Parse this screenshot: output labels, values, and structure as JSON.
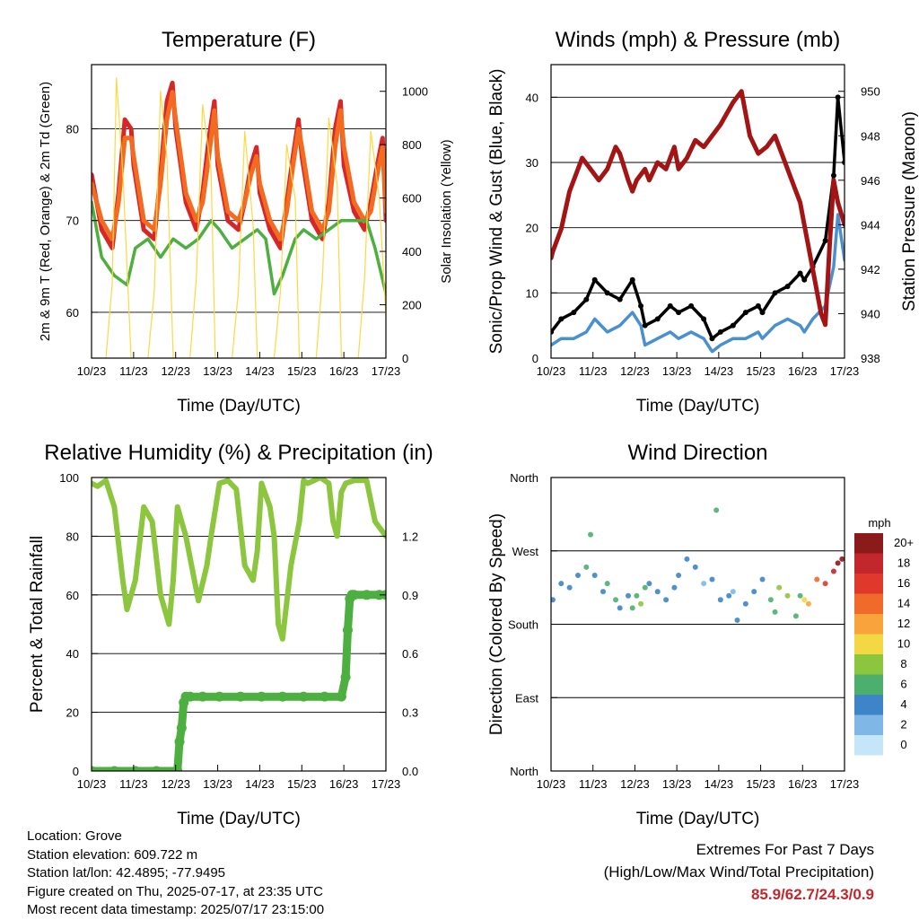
{
  "chart_data": [
    {
      "type": "line",
      "title": "Temperature (F)",
      "xlabel": "Time (Day/UTC)",
      "ylabel": "2m & 9m T (Red, Orange) & 2m Td (Green)",
      "y2label": "Solar Insolation (Yellow)",
      "x_ticks": [
        "10/23",
        "11/23",
        "12/23",
        "13/23",
        "14/23",
        "15/23",
        "16/23",
        "17/23"
      ],
      "xlim": [
        10.958,
        17.958
      ],
      "ylim": [
        55,
        87
      ],
      "y_ticks": [
        60,
        70,
        80
      ],
      "y2lim": [
        0,
        1100
      ],
      "y2_ticks": [
        0,
        200,
        400,
        600,
        800,
        1000
      ],
      "grid": true,
      "series": [
        {
          "name": "2m T",
          "color": "#d62728",
          "x": [
            10.96,
            11.2,
            11.45,
            11.6,
            11.75,
            11.9,
            11.96,
            12.2,
            12.45,
            12.6,
            12.75,
            12.88,
            12.96,
            13.2,
            13.45,
            13.6,
            13.75,
            13.88,
            13.96,
            14.2,
            14.45,
            14.6,
            14.75,
            14.88,
            14.96,
            15.2,
            15.45,
            15.6,
            15.75,
            15.88,
            15.96,
            16.2,
            16.45,
            16.6,
            16.75,
            16.88,
            16.96,
            17.2,
            17.45,
            17.6,
            17.75,
            17.88,
            17.96
          ],
          "values": [
            75,
            69,
            67,
            73,
            81,
            80,
            76,
            69,
            68,
            75,
            83,
            85,
            80,
            72,
            69,
            73,
            79,
            83,
            76,
            70,
            69,
            72,
            76,
            78,
            73,
            69,
            67,
            72,
            77,
            81,
            77,
            70,
            68,
            72,
            80,
            83,
            76,
            71,
            69,
            72,
            76,
            79,
            70
          ]
        },
        {
          "name": "9m T",
          "color": "#f26b21",
          "x": [
            10.96,
            11.2,
            11.45,
            11.6,
            11.75,
            11.9,
            11.96,
            12.2,
            12.45,
            12.6,
            12.75,
            12.88,
            12.96,
            13.2,
            13.45,
            13.6,
            13.75,
            13.88,
            13.96,
            14.2,
            14.45,
            14.6,
            14.75,
            14.88,
            14.96,
            15.2,
            15.45,
            15.6,
            15.75,
            15.88,
            15.96,
            16.2,
            16.45,
            16.6,
            16.75,
            16.88,
            16.96,
            17.2,
            17.45,
            17.6,
            17.75,
            17.88,
            17.96
          ],
          "values": [
            74,
            70,
            68,
            72,
            79,
            79,
            77,
            70,
            69,
            74,
            81,
            84,
            81,
            73,
            70,
            72,
            77,
            82,
            77,
            71,
            70,
            72,
            75,
            77,
            74,
            70,
            68,
            71,
            76,
            80,
            78,
            71,
            69,
            71,
            78,
            82,
            78,
            72,
            70,
            71,
            75,
            78,
            71
          ]
        },
        {
          "name": "2m Td",
          "color": "#4daf3f",
          "x": [
            10.96,
            11.2,
            11.5,
            11.8,
            12.0,
            12.3,
            12.6,
            12.9,
            13.2,
            13.5,
            13.8,
            14.0,
            14.3,
            14.6,
            14.9,
            15.1,
            15.3,
            15.5,
            15.8,
            16.0,
            16.3,
            16.6,
            16.9,
            17.2,
            17.5,
            17.7,
            17.96
          ],
          "values": [
            72,
            66,
            64,
            63,
            67,
            68,
            66,
            68,
            67,
            68,
            70,
            69,
            67,
            68,
            69,
            68,
            62,
            64,
            68,
            69,
            68,
            69,
            70,
            70,
            70,
            67,
            62
          ]
        },
        {
          "name": "Solar Insolation",
          "axis": "y2",
          "color": "#ffd840",
          "x": [
            10.96,
            11.3,
            11.45,
            11.55,
            11.7,
            11.9,
            12.0,
            12.3,
            12.45,
            12.6,
            12.75,
            12.9,
            13.0,
            13.3,
            13.45,
            13.6,
            13.8,
            13.9,
            14.0,
            14.3,
            14.45,
            14.6,
            14.8,
            14.9,
            15.0,
            15.3,
            15.45,
            15.6,
            15.8,
            15.9,
            16.0,
            16.3,
            16.45,
            16.6,
            16.8,
            16.9,
            17.0,
            17.3,
            17.45,
            17.6,
            17.8,
            17.96
          ],
          "values": [
            0,
            0,
            280,
            1050,
            700,
            0,
            0,
            0,
            250,
            1000,
            750,
            0,
            0,
            0,
            300,
            950,
            700,
            0,
            0,
            0,
            250,
            850,
            500,
            0,
            0,
            0,
            250,
            800,
            600,
            0,
            0,
            0,
            300,
            900,
            650,
            0,
            0,
            0,
            300,
            850,
            600,
            150
          ]
        }
      ]
    },
    {
      "type": "line",
      "title": "Winds (mph) & Pressure (mb)",
      "xlabel": "Time (Day/UTC)",
      "ylabel": "Sonic/Prop Wind & Gust (Blue, Black)",
      "y2label": "Station Pressure (Maroon)",
      "x_ticks": [
        "10/23",
        "11/23",
        "12/23",
        "13/23",
        "14/23",
        "15/23",
        "16/23",
        "17/23"
      ],
      "xlim": [
        10.958,
        17.958
      ],
      "ylim": [
        0,
        45
      ],
      "y_ticks": [
        0,
        10,
        20,
        30,
        40
      ],
      "y2lim": [
        938,
        951.2
      ],
      "y2_ticks": [
        938,
        940,
        942,
        944,
        946,
        948,
        950
      ],
      "grid": true,
      "series": [
        {
          "name": "Wind",
          "color": "#4a90d0",
          "x": [
            10.96,
            11.2,
            11.5,
            11.8,
            12.0,
            12.3,
            12.6,
            12.9,
            13.1,
            13.2,
            13.5,
            13.8,
            14.0,
            14.3,
            14.6,
            14.8,
            15.0,
            15.3,
            15.6,
            15.9,
            16.0,
            16.3,
            16.6,
            16.9,
            17.0,
            17.2,
            17.5,
            17.7,
            17.8,
            17.96
          ],
          "values": [
            2,
            3,
            3,
            4,
            6,
            4,
            5,
            7,
            5,
            2,
            3,
            4,
            3,
            4,
            3,
            1,
            2,
            3,
            3,
            4,
            3,
            5,
            6,
            5,
            4,
            6,
            8,
            14,
            22,
            15
          ]
        },
        {
          "name": "Gust",
          "color": "#000000",
          "x": [
            10.96,
            11.2,
            11.5,
            11.8,
            12.0,
            12.3,
            12.6,
            12.9,
            13.1,
            13.2,
            13.5,
            13.8,
            14.0,
            14.3,
            14.6,
            14.8,
            15.0,
            15.3,
            15.6,
            15.9,
            16.0,
            16.3,
            16.6,
            16.9,
            17.0,
            17.2,
            17.5,
            17.7,
            17.8,
            17.96
          ],
          "values": [
            4,
            6,
            7,
            9,
            12,
            10,
            9,
            12,
            8,
            5,
            6,
            8,
            7,
            8,
            6,
            3,
            4,
            5,
            7,
            8,
            7,
            10,
            11,
            13,
            12,
            14,
            18,
            28,
            40,
            30
          ]
        },
        {
          "name": "Station Pressure",
          "axis": "y2",
          "color": "#a31515",
          "x": [
            10.96,
            11.0,
            11.2,
            11.4,
            11.7,
            11.9,
            12.1,
            12.3,
            12.5,
            12.6,
            12.8,
            12.9,
            13.0,
            13.2,
            13.3,
            13.5,
            13.7,
            13.9,
            14.0,
            14.2,
            14.4,
            14.6,
            14.8,
            15.0,
            15.3,
            15.5,
            15.7,
            15.9,
            16.1,
            16.3,
            16.5,
            16.7,
            16.9,
            17.0,
            17.2,
            17.4,
            17.5,
            17.6,
            17.7,
            17.8,
            17.96
          ],
          "values": [
            942.5,
            942.8,
            943.8,
            945.5,
            947,
            946.5,
            946,
            946.5,
            947.5,
            947.2,
            946,
            945.5,
            946,
            946.5,
            946,
            946.8,
            946.5,
            947.5,
            946.5,
            947,
            947.8,
            947.5,
            948,
            948.5,
            949.5,
            950,
            948,
            947.2,
            947.5,
            948,
            947,
            946,
            945,
            944,
            942,
            940,
            939.5,
            943,
            946,
            945,
            944
          ]
        }
      ]
    },
    {
      "type": "line",
      "title": "Relative Humidity (%) & Precipitation (in)",
      "xlabel": "Time (Day/UTC)",
      "ylabel": "Percent & Total Rainfall",
      "x_ticks": [
        "10/23",
        "11/23",
        "12/23",
        "13/23",
        "14/23",
        "15/23",
        "16/23",
        "17/23"
      ],
      "xlim": [
        10.958,
        17.958
      ],
      "ylim": [
        0,
        100
      ],
      "y_ticks": [
        0,
        20,
        40,
        60,
        80,
        100
      ],
      "y2lim": [
        0,
        1.5
      ],
      "y2_ticks": [
        "0.0",
        "0.3",
        "0.6",
        "0.9",
        "1.2"
      ],
      "grid": true,
      "series": [
        {
          "name": "Relative Humidity",
          "color": "#8cc63e",
          "x": [
            10.96,
            11.1,
            11.3,
            11.5,
            11.7,
            11.8,
            12.0,
            12.2,
            12.4,
            12.6,
            12.8,
            12.9,
            13.0,
            13.2,
            13.5,
            13.7,
            13.8,
            14.0,
            14.2,
            14.4,
            14.6,
            14.8,
            14.9,
            15.0,
            15.2,
            15.3,
            15.4,
            15.5,
            15.7,
            15.9,
            16.0,
            16.1,
            16.4,
            16.6,
            16.7,
            16.8,
            16.9,
            17.0,
            17.2,
            17.5,
            17.7,
            17.96
          ],
          "values": [
            98,
            97,
            99,
            90,
            65,
            55,
            65,
            90,
            85,
            60,
            50,
            65,
            90,
            80,
            58,
            70,
            80,
            98,
            99,
            96,
            70,
            65,
            75,
            98,
            90,
            80,
            50,
            45,
            70,
            85,
            99,
            98,
            100,
            98,
            85,
            80,
            95,
            98,
            99,
            99,
            85,
            80
          ]
        },
        {
          "name": "Total Rainfall",
          "axis": "y2",
          "color": "#4caf3f",
          "x": [
            10.96,
            11.5,
            12.0,
            12.5,
            13.0,
            13.05,
            13.1,
            13.15,
            13.2,
            13.3,
            13.6,
            14.0,
            14.5,
            15.0,
            15.5,
            16.0,
            16.5,
            16.9,
            17.0,
            17.05,
            17.1,
            17.15,
            17.2,
            17.5,
            17.8,
            17.96
          ],
          "values": [
            0.0,
            0.0,
            0.0,
            0.0,
            0.0,
            0.15,
            0.22,
            0.35,
            0.38,
            0.38,
            0.38,
            0.38,
            0.38,
            0.38,
            0.38,
            0.38,
            0.38,
            0.38,
            0.48,
            0.72,
            0.88,
            0.9,
            0.9,
            0.9,
            0.9,
            0.9
          ]
        }
      ]
    },
    {
      "type": "scatter",
      "title": "Wind Direction",
      "xlabel": "Time (Day/UTC)",
      "ylabel": "Direction (Colored By Speed)",
      "x_ticks": [
        "10/23",
        "11/23",
        "12/23",
        "13/23",
        "14/23",
        "15/23",
        "16/23",
        "17/23"
      ],
      "xlim": [
        10.958,
        17.958
      ],
      "ylim": [
        0,
        360
      ],
      "y_ticks": [
        "North",
        "East",
        "South",
        "West",
        "North"
      ],
      "grid": true,
      "legend": {
        "title": "mph",
        "position": "right",
        "labels": [
          "20+",
          "18",
          "16",
          "14",
          "12",
          "10",
          "8",
          "6",
          "4",
          "2",
          "0"
        ],
        "colors": [
          "#8b1a1a",
          "#c1272d",
          "#e0392b",
          "#f06a2a",
          "#f9a33c",
          "#f2d843",
          "#8cc63e",
          "#4caf6e",
          "#3d85c6",
          "#7fb8e6",
          "#c5e6f8"
        ]
      },
      "series": [
        {
          "name": "direction",
          "x": [
            11.0,
            11.2,
            11.4,
            11.6,
            11.8,
            11.9,
            12.0,
            12.2,
            12.3,
            12.5,
            12.6,
            12.8,
            12.9,
            13.0,
            13.1,
            13.2,
            13.3,
            13.5,
            13.7,
            13.9,
            14.0,
            14.2,
            14.4,
            14.6,
            14.8,
            14.9,
            15.0,
            15.2,
            15.3,
            15.4,
            15.6,
            15.8,
            16.0,
            16.2,
            16.3,
            16.4,
            16.6,
            16.8,
            16.9,
            17.0,
            17.1,
            17.3,
            17.5,
            17.7,
            17.8,
            17.9
          ],
          "values": [
            210,
            230,
            225,
            240,
            250,
            290,
            240,
            220,
            230,
            210,
            200,
            215,
            200,
            215,
            205,
            225,
            230,
            220,
            210,
            225,
            240,
            260,
            250,
            230,
            235,
            320,
            210,
            215,
            220,
            185,
            205,
            220,
            235,
            210,
            195,
            225,
            215,
            190,
            215,
            210,
            205,
            235,
            230,
            245,
            255,
            260
          ],
          "speeds": [
            3,
            4,
            3,
            4,
            5,
            6,
            4,
            3,
            6,
            5,
            4,
            3,
            6,
            5,
            7,
            5,
            3,
            4,
            3,
            4,
            3,
            4,
            3,
            2,
            4,
            5,
            3,
            3,
            2,
            3,
            4,
            3,
            4,
            5,
            6,
            7,
            8,
            6,
            5,
            9,
            11,
            13,
            15,
            18,
            19,
            20
          ]
        }
      ]
    }
  ],
  "info": {
    "location": "Location: Grove",
    "elevation": "Station elevation: 609.722 m",
    "latlon": "Station lat/lon: 42.4895; -77.9495",
    "created": "Figure created on Thu, 2025-07-17, at 23:35 UTC",
    "recent": "Most recent data timestamp: 2025/07/17 23:15:00"
  },
  "extremes": {
    "title": "Extremes For Past 7 Days",
    "subtitle": "(High/Low/Max Wind/Total Precipitation)",
    "values": "85.9/62.7/24.3/0.9"
  }
}
